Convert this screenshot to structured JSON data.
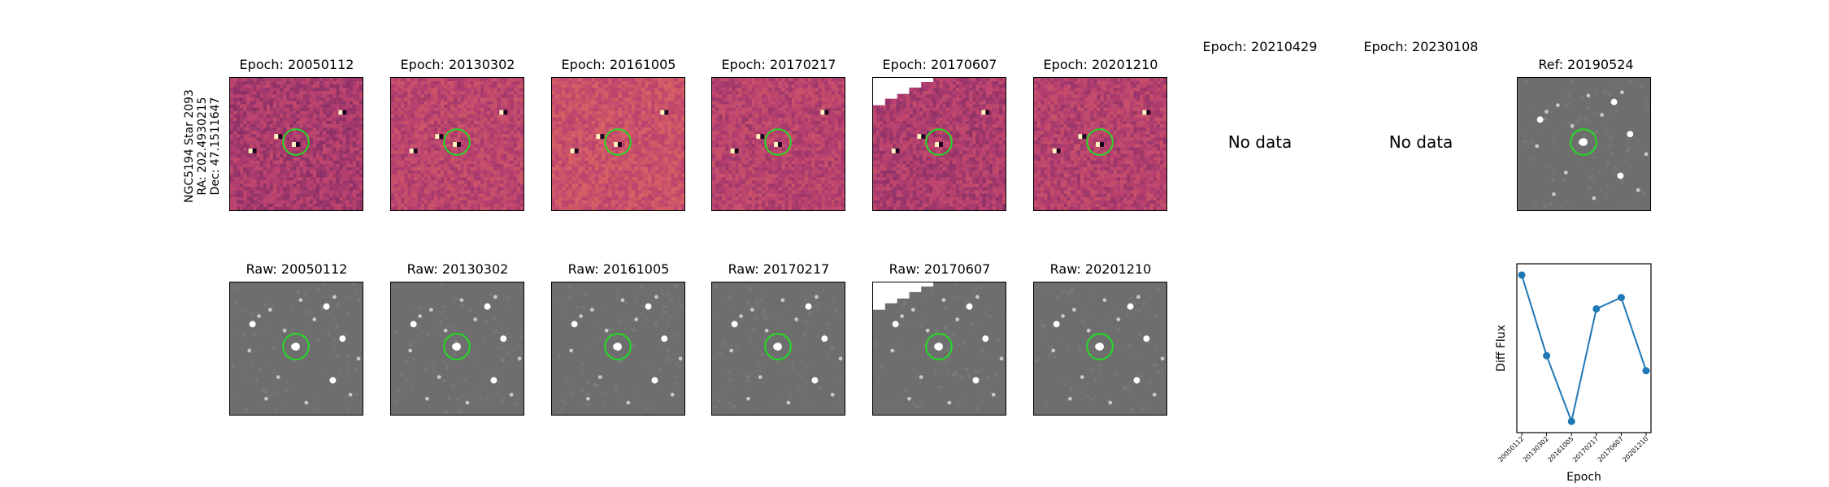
{
  "side_label": {
    "line1": "NGC5194 Star 2093",
    "line2": "RA: 202.4930215",
    "line3": "Dec: 47.1511647"
  },
  "diff_row": [
    {
      "title": "Epoch: 20050112",
      "style": "diff",
      "brightness": 0.42
    },
    {
      "title": "Epoch: 20130302",
      "style": "diff",
      "brightness": 0.55
    },
    {
      "title": "Epoch: 20161005",
      "style": "diff",
      "brightness": 0.68
    },
    {
      "title": "Epoch: 20170217",
      "style": "diff",
      "brightness": 0.52
    },
    {
      "title": "Epoch: 20170607",
      "style": "diff",
      "brightness": 0.45
    },
    {
      "title": "Epoch: 20201210",
      "style": "diff",
      "brightness": 0.5
    }
  ],
  "nodata_cols": [
    {
      "title": "Epoch: 20210429",
      "message": "No data"
    },
    {
      "title": "Epoch: 20230108",
      "message": "No data"
    }
  ],
  "ref": {
    "title": "Ref: 20190524"
  },
  "raw_row": [
    {
      "title": "Raw: 20050112"
    },
    {
      "title": "Raw: 20130302"
    },
    {
      "title": "Raw: 20161005"
    },
    {
      "title": "Raw: 20170217"
    },
    {
      "title": "Raw: 20170607"
    },
    {
      "title": "Raw: 20201210"
    }
  ],
  "colors": {
    "marker_circle": "#22dd22",
    "diff_low": "#5a1f5f",
    "diff_mid": "#b8406f",
    "diff_high": "#e8705f",
    "raw_bg": "#6e6e6e",
    "line": "#1f77b4"
  },
  "chart_data": {
    "type": "line",
    "ylabel": "Diff Flux",
    "xlabel": "Epoch",
    "categories": [
      "20050112",
      "20130302",
      "20161005",
      "20170217",
      "20170607",
      "20201210"
    ],
    "series": [
      {
        "values": [
          0.92,
          0.49,
          0.14,
          0.74,
          0.8,
          0.41
        ]
      }
    ],
    "ylim": [
      0.08,
      0.98
    ],
    "grid": false
  }
}
